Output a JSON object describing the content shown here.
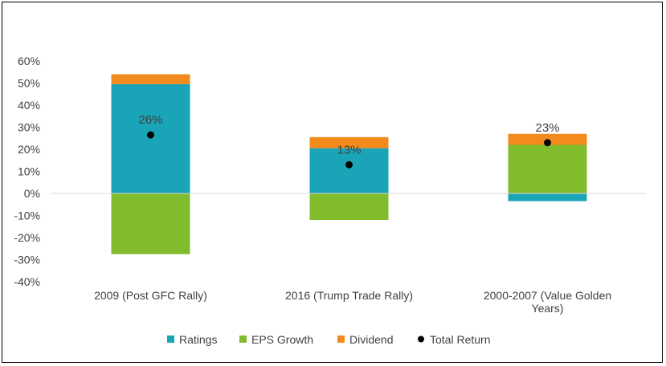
{
  "chart_data": {
    "type": "bar",
    "stacked": true,
    "categories": [
      [
        "2009 (Post GFC Rally)"
      ],
      [
        "2016 (Trump Trade Rally)"
      ],
      [
        "2000-2007 (Value Golden",
        "Years)"
      ]
    ],
    "series": [
      {
        "name": "Ratings",
        "color": "#1aa4b8",
        "values": [
          49.5,
          20.5,
          -3.5
        ]
      },
      {
        "name": "EPS Growth",
        "color": "#80bc2c",
        "values": [
          -27.5,
          -12,
          22
        ]
      },
      {
        "name": "Dividend",
        "color": "#f38b1c",
        "values": [
          4.5,
          5,
          5
        ]
      }
    ],
    "total_return": {
      "name": "Total Return",
      "color": "#000000",
      "values": [
        26.5,
        13,
        23
      ],
      "labels": [
        "26%",
        "13%",
        "23%"
      ]
    },
    "ylim": [
      -40,
      60
    ],
    "yticks": [
      60,
      50,
      40,
      30,
      20,
      10,
      0,
      -10,
      -20,
      -30,
      -40
    ],
    "ytick_labels": [
      "60%",
      "50%",
      "40%",
      "30%",
      "20%",
      "10%",
      "0%",
      "-10%",
      "-20%",
      "-30%",
      "-40%"
    ],
    "grid": false,
    "legend_position": "bottom"
  }
}
